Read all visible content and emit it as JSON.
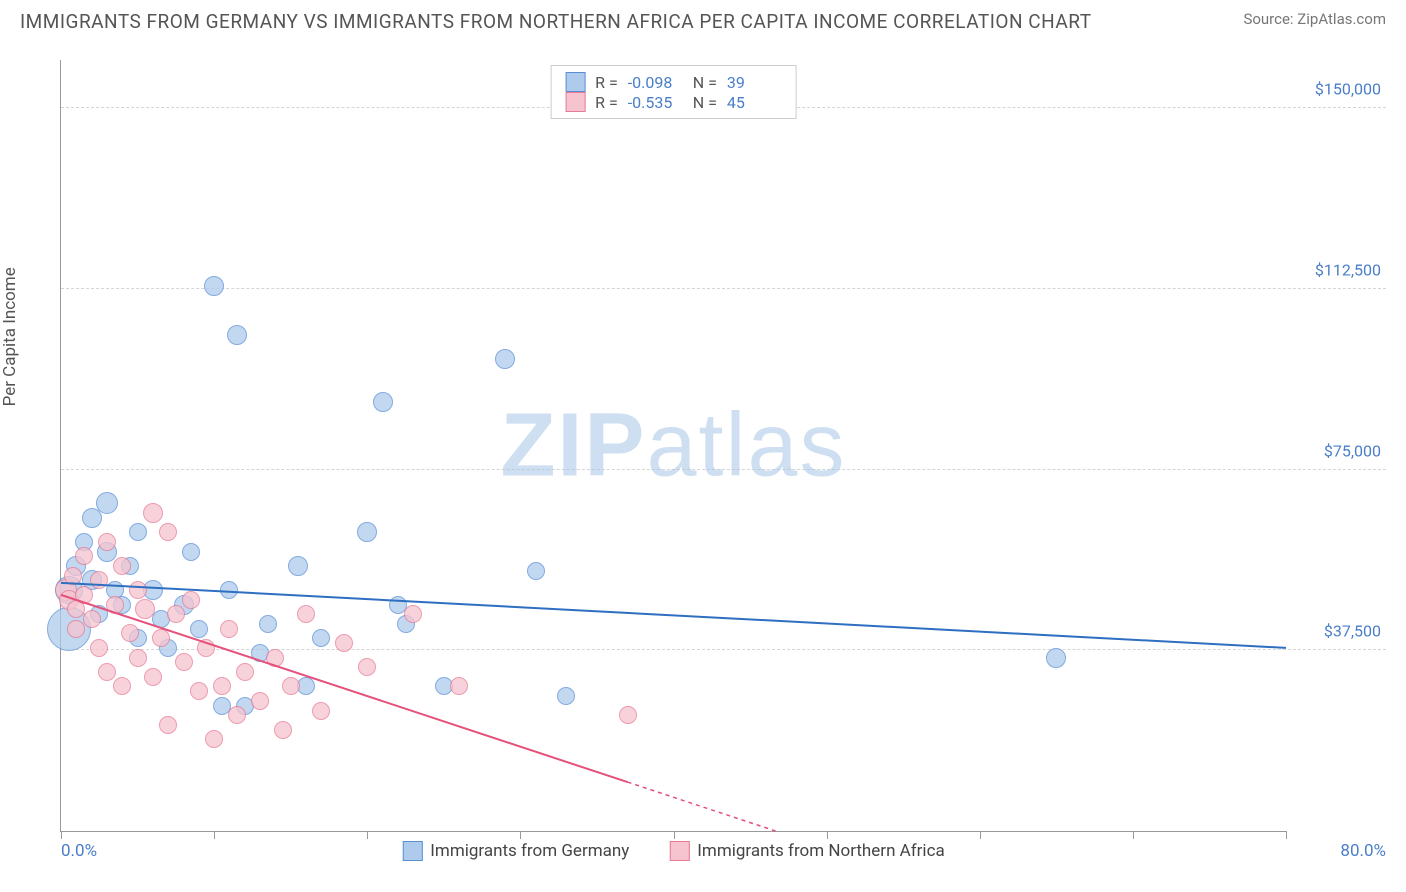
{
  "title": "IMMIGRANTS FROM GERMANY VS IMMIGRANTS FROM NORTHERN AFRICA PER CAPITA INCOME CORRELATION CHART",
  "source_prefix": "Source: ",
  "source_name": "ZipAtlas.com",
  "y_axis_label": "Per Capita Income",
  "watermark_bold": "ZIP",
  "watermark_rest": "atlas",
  "chart": {
    "type": "scatter",
    "x_min": 0.0,
    "x_max": 80.0,
    "y_min": 0,
    "y_max": 160000,
    "x_start_label": "0.0%",
    "x_end_label": "80.0%",
    "x_tick_step": 10.0,
    "y_gridlines": [
      {
        "value": 37500,
        "label": "$37,500"
      },
      {
        "value": 75000,
        "label": "$75,000"
      },
      {
        "value": 112500,
        "label": "$112,500"
      },
      {
        "value": 150000,
        "label": "$150,000"
      }
    ],
    "background_color": "#ffffff",
    "grid_color": "#d5d5d5",
    "axis_color": "#999999",
    "tick_font_color": "#4a7ec9"
  },
  "series": [
    {
      "name": "Immigrants from Germany",
      "fill_color": "#aecbec",
      "stroke_color": "#5a8fd6",
      "line_color": "#2e6fc1",
      "marker_radius": 9,
      "R_label": "R = ",
      "R_value": "-0.098",
      "N_label": "N = ",
      "N_value": "39",
      "regression": {
        "x1": 0,
        "y1": 51500,
        "x2": 80,
        "y2": 38000,
        "solid_until_x": 80
      },
      "points": [
        {
          "x": 0.5,
          "y": 50000,
          "r": 14
        },
        {
          "x": 0.5,
          "y": 42000,
          "r": 22
        },
        {
          "x": 1.0,
          "y": 55000,
          "r": 10
        },
        {
          "x": 1.5,
          "y": 60000,
          "r": 9
        },
        {
          "x": 2.0,
          "y": 52000,
          "r": 10
        },
        {
          "x": 2.0,
          "y": 65000,
          "r": 10
        },
        {
          "x": 2.5,
          "y": 45000,
          "r": 9
        },
        {
          "x": 3.0,
          "y": 58000,
          "r": 10
        },
        {
          "x": 3.0,
          "y": 68000,
          "r": 11
        },
        {
          "x": 3.5,
          "y": 50000,
          "r": 9
        },
        {
          "x": 4.0,
          "y": 47000,
          "r": 9
        },
        {
          "x": 4.5,
          "y": 55000,
          "r": 9
        },
        {
          "x": 5.0,
          "y": 62000,
          "r": 9
        },
        {
          "x": 5.0,
          "y": 40000,
          "r": 9
        },
        {
          "x": 6.0,
          "y": 50000,
          "r": 10
        },
        {
          "x": 6.5,
          "y": 44000,
          "r": 9
        },
        {
          "x": 7.0,
          "y": 38000,
          "r": 9
        },
        {
          "x": 8.0,
          "y": 47000,
          "r": 10
        },
        {
          "x": 8.5,
          "y": 58000,
          "r": 9
        },
        {
          "x": 9.0,
          "y": 42000,
          "r": 9
        },
        {
          "x": 10.0,
          "y": 113000,
          "r": 10
        },
        {
          "x": 10.5,
          "y": 26000,
          "r": 9
        },
        {
          "x": 11.0,
          "y": 50000,
          "r": 9
        },
        {
          "x": 11.5,
          "y": 103000,
          "r": 10
        },
        {
          "x": 12.0,
          "y": 26000,
          "r": 9
        },
        {
          "x": 13.0,
          "y": 37000,
          "r": 9
        },
        {
          "x": 13.5,
          "y": 43000,
          "r": 9
        },
        {
          "x": 15.5,
          "y": 55000,
          "r": 10
        },
        {
          "x": 16.0,
          "y": 30000,
          "r": 9
        },
        {
          "x": 17.0,
          "y": 40000,
          "r": 9
        },
        {
          "x": 20.0,
          "y": 62000,
          "r": 10
        },
        {
          "x": 21.0,
          "y": 89000,
          "r": 10
        },
        {
          "x": 22.0,
          "y": 47000,
          "r": 9
        },
        {
          "x": 22.5,
          "y": 43000,
          "r": 9
        },
        {
          "x": 25.0,
          "y": 30000,
          "r": 9
        },
        {
          "x": 29.0,
          "y": 98000,
          "r": 10
        },
        {
          "x": 31.0,
          "y": 54000,
          "r": 9
        },
        {
          "x": 33.0,
          "y": 28000,
          "r": 9
        },
        {
          "x": 65.0,
          "y": 36000,
          "r": 10
        }
      ]
    },
    {
      "name": "Immigrants from Northern Africa",
      "fill_color": "#f6c4cf",
      "stroke_color": "#e77a95",
      "line_color": "#e5517a",
      "marker_radius": 9,
      "R_label": "R = ",
      "R_value": "-0.535",
      "N_label": "N = ",
      "N_value": "45",
      "regression": {
        "x1": 0,
        "y1": 49000,
        "x2": 80,
        "y2": -35000,
        "solid_until_x": 37
      },
      "points": [
        {
          "x": 0.3,
          "y": 50000,
          "r": 11
        },
        {
          "x": 0.5,
          "y": 48000,
          "r": 10
        },
        {
          "x": 0.8,
          "y": 53000,
          "r": 9
        },
        {
          "x": 1.0,
          "y": 46000,
          "r": 9
        },
        {
          "x": 1.0,
          "y": 42000,
          "r": 9
        },
        {
          "x": 1.5,
          "y": 57000,
          "r": 9
        },
        {
          "x": 1.5,
          "y": 49000,
          "r": 9
        },
        {
          "x": 2.0,
          "y": 44000,
          "r": 9
        },
        {
          "x": 2.5,
          "y": 52000,
          "r": 9
        },
        {
          "x": 2.5,
          "y": 38000,
          "r": 9
        },
        {
          "x": 3.0,
          "y": 60000,
          "r": 9
        },
        {
          "x": 3.0,
          "y": 33000,
          "r": 9
        },
        {
          "x": 3.5,
          "y": 47000,
          "r": 9
        },
        {
          "x": 4.0,
          "y": 55000,
          "r": 9
        },
        {
          "x": 4.0,
          "y": 30000,
          "r": 9
        },
        {
          "x": 4.5,
          "y": 41000,
          "r": 9
        },
        {
          "x": 5.0,
          "y": 50000,
          "r": 9
        },
        {
          "x": 5.0,
          "y": 36000,
          "r": 9
        },
        {
          "x": 5.5,
          "y": 46000,
          "r": 10
        },
        {
          "x": 6.0,
          "y": 66000,
          "r": 10
        },
        {
          "x": 6.0,
          "y": 32000,
          "r": 9
        },
        {
          "x": 6.5,
          "y": 40000,
          "r": 9
        },
        {
          "x": 7.0,
          "y": 62000,
          "r": 9
        },
        {
          "x": 7.0,
          "y": 22000,
          "r": 9
        },
        {
          "x": 7.5,
          "y": 45000,
          "r": 9
        },
        {
          "x": 8.0,
          "y": 35000,
          "r": 9
        },
        {
          "x": 8.5,
          "y": 48000,
          "r": 9
        },
        {
          "x": 9.0,
          "y": 29000,
          "r": 9
        },
        {
          "x": 9.5,
          "y": 38000,
          "r": 9
        },
        {
          "x": 10.0,
          "y": 19000,
          "r": 9
        },
        {
          "x": 10.5,
          "y": 30000,
          "r": 9
        },
        {
          "x": 11.0,
          "y": 42000,
          "r": 9
        },
        {
          "x": 11.5,
          "y": 24000,
          "r": 9
        },
        {
          "x": 12.0,
          "y": 33000,
          "r": 9
        },
        {
          "x": 13.0,
          "y": 27000,
          "r": 9
        },
        {
          "x": 14.0,
          "y": 36000,
          "r": 9
        },
        {
          "x": 14.5,
          "y": 21000,
          "r": 9
        },
        {
          "x": 15.0,
          "y": 30000,
          "r": 9
        },
        {
          "x": 16.0,
          "y": 45000,
          "r": 9
        },
        {
          "x": 17.0,
          "y": 25000,
          "r": 9
        },
        {
          "x": 18.5,
          "y": 39000,
          "r": 9
        },
        {
          "x": 20.0,
          "y": 34000,
          "r": 9
        },
        {
          "x": 23.0,
          "y": 45000,
          "r": 9
        },
        {
          "x": 26.0,
          "y": 30000,
          "r": 9
        },
        {
          "x": 37.0,
          "y": 24000,
          "r": 9
        }
      ]
    }
  ],
  "legend_bottom": [
    {
      "label": "Immigrants from Germany",
      "series_index": 0
    },
    {
      "label": "Immigrants from Northern Africa",
      "series_index": 1
    }
  ]
}
